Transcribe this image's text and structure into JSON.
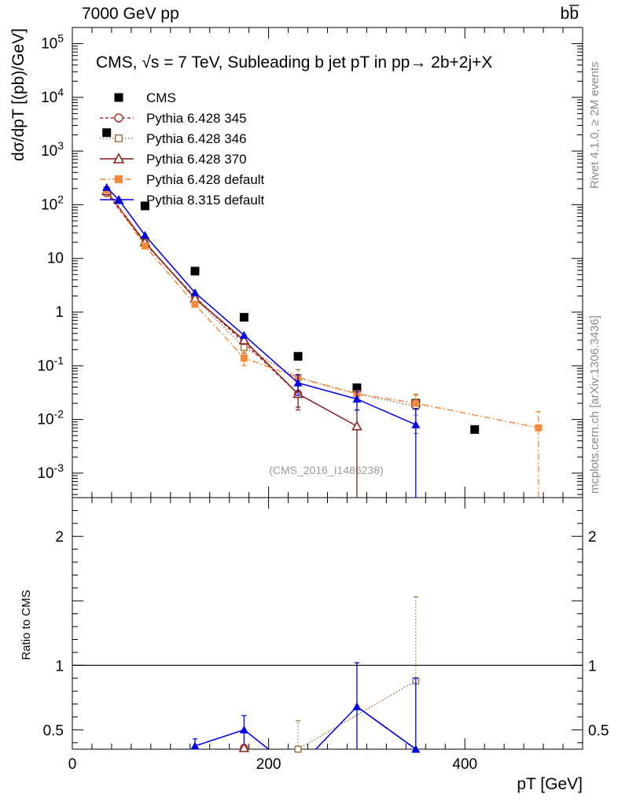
{
  "header": {
    "left": "7000 GeV pp",
    "right": "bb̅"
  },
  "side_labels": {
    "rivet": "Rivet 4.1.0, ≥ 2M events",
    "source": "mcplots.cern.ch [arXiv:1306.3436]"
  },
  "chart_data": {
    "type": "scatter",
    "title": "CMS, √s = 7 TeV, Subleading b jet pT in pp→ 2b+2j+X",
    "watermark": "(CMS_2016_I1486238)",
    "xlabel": "pT [GeV]",
    "ylabel": "dσ/dpT [(pb)/GeV]",
    "ratio_ylabel": "Ratio to CMS",
    "xlim": [
      0,
      520
    ],
    "ylim": [
      0.00035,
      200000
    ],
    "yscale": "log",
    "ratio_ylim": [
      0.35,
      2.3
    ],
    "x_ticks": [
      {
        "value": 0,
        "label": "0"
      },
      {
        "value": 200,
        "label": "200"
      },
      {
        "value": 400,
        "label": "400"
      }
    ],
    "y_ticks": [
      {
        "value": 100000,
        "label": "10^5"
      },
      {
        "value": 10000,
        "label": "10^4"
      },
      {
        "value": 1000,
        "label": "10^3"
      },
      {
        "value": 100,
        "label": "10^2"
      },
      {
        "value": 10,
        "label": "10"
      },
      {
        "value": 1,
        "label": "1"
      },
      {
        "value": 0.1,
        "label": "10^-1"
      },
      {
        "value": 0.01,
        "label": "10^-2"
      },
      {
        "value": 0.001,
        "label": "10^-3"
      }
    ],
    "ratio_ticks": [
      {
        "value": 0.5,
        "label": "0.5"
      },
      {
        "value": 1,
        "label": "1"
      },
      {
        "value": 2,
        "label": "2"
      }
    ],
    "series": [
      {
        "name": "CMS",
        "color": "#000000",
        "marker": "square-filled",
        "dash": "none",
        "line": false,
        "x": [
          35,
          74,
          125,
          175,
          230,
          290,
          350,
          410
        ],
        "y": [
          2200,
          95,
          5.8,
          0.8,
          0.15,
          0.039,
          0.02,
          0.0065
        ]
      },
      {
        "name": "Pythia 6.428 345",
        "color": "#b52e2e",
        "marker": "circle-open",
        "dash": "4 3",
        "line": true,
        "x": [
          35,
          74,
          125,
          175,
          230
        ],
        "y": [
          165,
          19,
          1.9,
          0.27,
          0.03
        ],
        "err": [
          null,
          null,
          null,
          null,
          0.015
        ],
        "ratio": [
          null,
          null,
          null,
          0.36,
          null
        ]
      },
      {
        "name": "Pythia 6.428 346",
        "color": "#9c7a45",
        "marker": "square-open",
        "dash": "1.5 2.5",
        "line": true,
        "x": [
          35,
          74,
          125,
          175,
          230,
          290,
          350
        ],
        "y": [
          175,
          20,
          1.8,
          0.22,
          0.06,
          0.03,
          0.0175
        ],
        "err": [
          null,
          null,
          null,
          0.05,
          0.025,
          null,
          0.012
        ],
        "ratio": [
          null,
          null,
          null,
          null,
          0.35,
          null,
          0.88
        ],
        "ratio_err": [
          null,
          null,
          null,
          null,
          0.22,
          null,
          0.65
        ]
      },
      {
        "name": "Pythia 6.428 370",
        "color": "#8c1a1a",
        "marker": "triangle-open",
        "dash": "none",
        "line": true,
        "x": [
          35,
          74,
          125,
          175,
          230,
          290
        ],
        "y": [
          180,
          20,
          1.8,
          0.3,
          0.03,
          0.0075
        ],
        "err": [
          null,
          null,
          null,
          null,
          0.013,
          0.0075
        ],
        "ratio": [
          null,
          null,
          null,
          0.36,
          null,
          null
        ]
      },
      {
        "name": "Pythia 6.428 default",
        "color": "#f58a3a",
        "marker": "square-filled",
        "dash": "8 3 2 3",
        "line": true,
        "x": [
          35,
          74,
          125,
          175,
          230,
          290,
          350,
          475
        ],
        "y": [
          190,
          17,
          1.4,
          0.14,
          0.06,
          0.03,
          0.02,
          0.007
        ],
        "err": [
          null,
          null,
          null,
          0.04,
          null,
          null,
          0.008,
          0.007
        ]
      },
      {
        "name": "Pythia 8.315 default",
        "color": "#0000e6",
        "marker": "triangle-filled",
        "dash": "none",
        "line": true,
        "x": [
          35,
          48,
          74,
          125,
          175,
          230,
          290,
          350
        ],
        "y": [
          210,
          120,
          27,
          2.3,
          0.37,
          0.048,
          0.024,
          0.008
        ],
        "err": [
          null,
          null,
          null,
          null,
          null,
          0.02,
          0.009,
          0.008
        ],
        "ratio": [
          null,
          null,
          null,
          0.375,
          0.5,
          null,
          0.68,
          0.35
        ],
        "ratio_err": [
          null,
          null,
          null,
          0.055,
          0.11,
          null,
          0.34,
          0.55
        ]
      }
    ]
  }
}
